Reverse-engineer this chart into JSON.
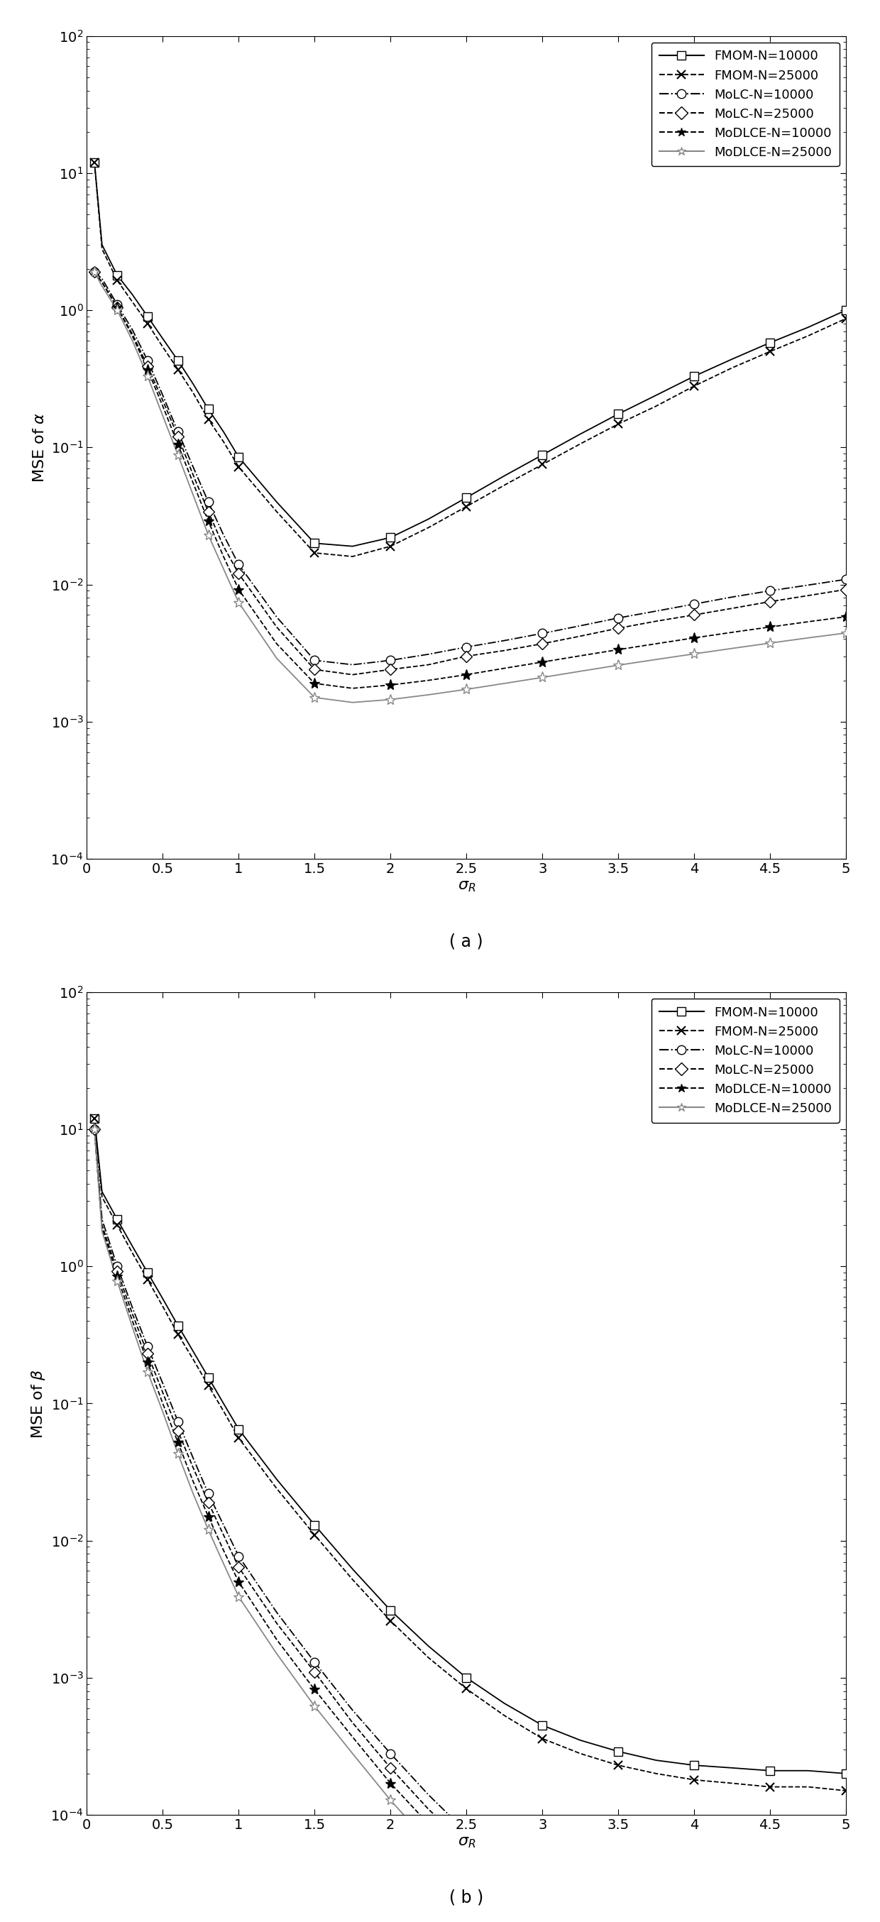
{
  "sigma_R": [
    0.05,
    0.1,
    0.2,
    0.3,
    0.4,
    0.5,
    0.6,
    0.7,
    0.8,
    0.9,
    1.0,
    1.25,
    1.5,
    1.75,
    2.0,
    2.25,
    2.5,
    2.75,
    3.0,
    3.25,
    3.5,
    3.75,
    4.0,
    4.25,
    4.5,
    4.75,
    5.0
  ],
  "alpha": {
    "FMOM_10000": [
      12.0,
      3.0,
      1.8,
      1.3,
      0.9,
      0.62,
      0.43,
      0.29,
      0.19,
      0.13,
      0.085,
      0.04,
      0.02,
      0.019,
      0.022,
      0.03,
      0.043,
      0.062,
      0.088,
      0.125,
      0.175,
      0.24,
      0.33,
      0.44,
      0.58,
      0.75,
      1.0
    ],
    "FMOM_25000": [
      12.0,
      2.8,
      1.65,
      1.15,
      0.8,
      0.54,
      0.37,
      0.25,
      0.16,
      0.11,
      0.072,
      0.034,
      0.017,
      0.016,
      0.019,
      0.026,
      0.037,
      0.053,
      0.075,
      0.106,
      0.148,
      0.2,
      0.28,
      0.38,
      0.5,
      0.65,
      0.87
    ],
    "MoLC_10000": [
      1.9,
      1.7,
      1.1,
      0.72,
      0.43,
      0.24,
      0.13,
      0.072,
      0.04,
      0.023,
      0.014,
      0.0058,
      0.0028,
      0.0026,
      0.0028,
      0.0031,
      0.0035,
      0.0039,
      0.0044,
      0.005,
      0.0057,
      0.0064,
      0.0072,
      0.0081,
      0.009,
      0.0099,
      0.0109
    ],
    "MoLC_25000": [
      1.9,
      1.6,
      1.05,
      0.67,
      0.39,
      0.22,
      0.12,
      0.063,
      0.034,
      0.019,
      0.012,
      0.0049,
      0.0024,
      0.0022,
      0.0024,
      0.0026,
      0.003,
      0.0033,
      0.0037,
      0.0042,
      0.0048,
      0.0054,
      0.006,
      0.0067,
      0.0075,
      0.0083,
      0.0092
    ],
    "MoDLCE_10000": [
      1.9,
      1.6,
      1.05,
      0.65,
      0.37,
      0.2,
      0.105,
      0.055,
      0.029,
      0.016,
      0.0092,
      0.0037,
      0.0019,
      0.00175,
      0.00185,
      0.002,
      0.0022,
      0.00245,
      0.00272,
      0.00302,
      0.00335,
      0.0037,
      0.00408,
      0.00448,
      0.0049,
      0.00535,
      0.00582
    ],
    "MoDLCE_25000": [
      1.9,
      1.5,
      1.0,
      0.6,
      0.33,
      0.17,
      0.088,
      0.045,
      0.023,
      0.013,
      0.0074,
      0.0029,
      0.0015,
      0.00138,
      0.00145,
      0.00157,
      0.00172,
      0.0019,
      0.0021,
      0.00233,
      0.00258,
      0.00284,
      0.00312,
      0.00342,
      0.00374,
      0.00408,
      0.00443
    ]
  },
  "beta": {
    "FMOM_10000": [
      12.0,
      3.5,
      2.2,
      1.4,
      0.9,
      0.58,
      0.37,
      0.24,
      0.155,
      0.1,
      0.065,
      0.028,
      0.013,
      0.0062,
      0.0031,
      0.0017,
      0.001,
      0.00065,
      0.00045,
      0.00035,
      0.00029,
      0.00025,
      0.00023,
      0.00022,
      0.00021,
      0.00021,
      0.0002
    ],
    "FMOM_25000": [
      12.0,
      3.2,
      2.0,
      1.25,
      0.8,
      0.51,
      0.32,
      0.21,
      0.135,
      0.088,
      0.056,
      0.024,
      0.011,
      0.0052,
      0.0026,
      0.0014,
      0.00083,
      0.00053,
      0.00036,
      0.00028,
      0.00023,
      0.0002,
      0.00018,
      0.00017,
      0.00016,
      0.00016,
      0.00015
    ],
    "MoLC_10000": [
      10.0,
      2.2,
      1.0,
      0.5,
      0.26,
      0.14,
      0.074,
      0.04,
      0.022,
      0.013,
      0.0077,
      0.003,
      0.0013,
      0.00058,
      0.00028,
      0.00014,
      7.5e-05,
      4.3e-05,
      2.7e-05,
      1.8e-05,
      1.4e-05,
      1.1e-05,
      9.4e-06,
      8.3e-06,
      7.4e-06,
      6.9e-06,
      6.4e-06
    ],
    "MoLC_25000": [
      10.0,
      2.0,
      0.92,
      0.45,
      0.23,
      0.12,
      0.063,
      0.034,
      0.019,
      0.011,
      0.0064,
      0.0025,
      0.0011,
      0.00047,
      0.00022,
      0.00011,
      6e-05,
      3.4e-05,
      2.1e-05,
      1.4e-05,
      1e-05,
      8.5e-06,
      7.2e-06,
      6.3e-06,
      5.6e-06,
      5.2e-06,
      4.8e-06
    ],
    "MoDLCE_10000": [
      10.0,
      1.9,
      0.85,
      0.4,
      0.2,
      0.1,
      0.052,
      0.027,
      0.015,
      0.0085,
      0.005,
      0.0019,
      0.00082,
      0.00037,
      0.00017,
      8.6e-05,
      4.7e-05,
      2.7e-05,
      1.7e-05,
      1.1e-05,
      8.5e-06,
      6.8e-06,
      5.6e-06,
      4.8e-06,
      4.2e-06,
      3.8e-06,
      3.5e-06
    ],
    "MoDLCE_25000": [
      10.0,
      1.8,
      0.78,
      0.36,
      0.17,
      0.087,
      0.043,
      0.022,
      0.012,
      0.0068,
      0.0039,
      0.0015,
      0.00062,
      0.00028,
      0.000128,
      6.3e-05,
      3.4e-05,
      1.9e-05,
      1.2e-05,
      8.2e-06,
      6.1e-06,
      4.8e-06,
      4e-06,
      3.4e-06,
      3e-06,
      2.7e-06,
      2.4e-06
    ]
  },
  "legend_labels": [
    "FMOM-N=10000",
    "FMOM-N=25000",
    "MoLC-N=10000",
    "MoLC-N=25000",
    "MoDLCE-N=10000",
    "MoDLCE-N=25000"
  ],
  "xlabel": "$\\sigma_R$",
  "ylabel_a": "MSE of $\\alpha$",
  "ylabel_b": "MSE of $\\beta$",
  "panel_a": "( a )",
  "panel_b": "( b )",
  "xlim": [
    0,
    5
  ],
  "xticks": [
    0,
    0.5,
    1.0,
    1.5,
    2.0,
    2.5,
    3.0,
    3.5,
    4.0,
    4.5,
    5
  ],
  "xtick_labels": [
    "0",
    "0.5",
    "1",
    "1.5",
    "2",
    "2.5",
    "3",
    "3.5",
    "4",
    "4.5",
    "5"
  ],
  "ylim": [
    0.0001,
    100.0
  ]
}
